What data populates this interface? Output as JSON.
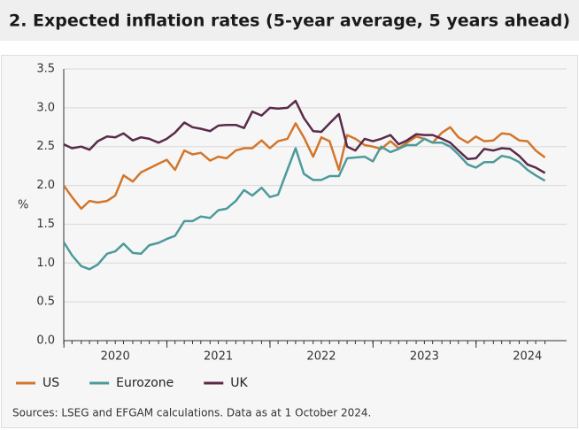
{
  "chart_data": {
    "type": "line",
    "title": "2. Expected inflation rates (5-year average, 5 years ahead)",
    "ylabel": "%",
    "source": "Sources: LSEG and EFGAM calculations. Data as at 1 October 2024.",
    "x": [
      2020.0,
      2020.08,
      2020.17,
      2020.25,
      2020.33,
      2020.42,
      2020.5,
      2020.58,
      2020.67,
      2020.75,
      2020.83,
      2020.92,
      2021.0,
      2021.08,
      2021.17,
      2021.25,
      2021.33,
      2021.42,
      2021.5,
      2021.58,
      2021.67,
      2021.75,
      2021.83,
      2021.92,
      2022.0,
      2022.08,
      2022.17,
      2022.25,
      2022.33,
      2022.42,
      2022.5,
      2022.58,
      2022.67,
      2022.75,
      2022.83,
      2022.92,
      2023.0,
      2023.08,
      2023.17,
      2023.25,
      2023.33,
      2023.42,
      2023.5,
      2023.58,
      2023.67,
      2023.75,
      2023.83,
      2023.92,
      2024.0,
      2024.08,
      2024.17,
      2024.25,
      2024.33,
      2024.42,
      2024.5,
      2024.58,
      2024.67
    ],
    "series": [
      {
        "name": "US",
        "color": "#d2762c",
        "values": [
          2.0,
          1.85,
          1.7,
          1.8,
          1.78,
          1.8,
          1.87,
          2.13,
          2.05,
          2.17,
          2.22,
          2.28,
          2.33,
          2.2,
          2.45,
          2.4,
          2.42,
          2.32,
          2.37,
          2.35,
          2.45,
          2.48,
          2.48,
          2.58,
          2.48,
          2.57,
          2.6,
          2.8,
          2.62,
          2.37,
          2.62,
          2.57,
          2.2,
          2.65,
          2.6,
          2.52,
          2.5,
          2.47,
          2.57,
          2.48,
          2.55,
          2.63,
          2.6,
          2.55,
          2.68,
          2.75,
          2.62,
          2.55,
          2.63,
          2.57,
          2.58,
          2.67,
          2.66,
          2.58,
          2.57,
          2.45,
          2.36
        ]
      },
      {
        "name": "Eurozone",
        "color": "#4d9a9a",
        "values": [
          1.27,
          1.1,
          0.96,
          0.92,
          0.98,
          1.12,
          1.15,
          1.25,
          1.13,
          1.12,
          1.23,
          1.26,
          1.31,
          1.35,
          1.54,
          1.54,
          1.6,
          1.58,
          1.68,
          1.7,
          1.8,
          1.94,
          1.87,
          1.97,
          1.85,
          1.88,
          2.2,
          2.48,
          2.15,
          2.07,
          2.07,
          2.12,
          2.12,
          2.35,
          2.36,
          2.37,
          2.31,
          2.5,
          2.43,
          2.47,
          2.52,
          2.52,
          2.6,
          2.55,
          2.55,
          2.5,
          2.4,
          2.27,
          2.23,
          2.3,
          2.3,
          2.38,
          2.36,
          2.3,
          2.2,
          2.13,
          2.06
        ]
      },
      {
        "name": "UK",
        "color": "#5a2a4a",
        "values": [
          2.53,
          2.48,
          2.5,
          2.46,
          2.57,
          2.63,
          2.62,
          2.67,
          2.58,
          2.62,
          2.6,
          2.55,
          2.6,
          2.68,
          2.81,
          2.75,
          2.73,
          2.7,
          2.77,
          2.78,
          2.78,
          2.74,
          2.95,
          2.9,
          3.0,
          2.99,
          3.0,
          3.09,
          2.87,
          2.7,
          2.69,
          2.8,
          2.92,
          2.5,
          2.45,
          2.6,
          2.57,
          2.6,
          2.65,
          2.53,
          2.58,
          2.66,
          2.65,
          2.65,
          2.6,
          2.55,
          2.45,
          2.34,
          2.35,
          2.47,
          2.45,
          2.48,
          2.47,
          2.38,
          2.27,
          2.23,
          2.16
        ]
      }
    ],
    "xlim": [
      2020.0,
      2024.88
    ],
    "xticks": [
      {
        "value": 2020.5,
        "label": "2020"
      },
      {
        "value": 2021.5,
        "label": "2021"
      },
      {
        "value": 2022.5,
        "label": "2022"
      },
      {
        "value": 2023.5,
        "label": "2023"
      },
      {
        "value": 2024.5,
        "label": "2024"
      }
    ],
    "ylim": [
      0,
      3.5
    ],
    "yticks": [
      {
        "value": 0,
        "label": "0.0"
      },
      0.5,
      {
        "value": 1,
        "label": "1.0"
      },
      1.5,
      {
        "value": 2,
        "label": "2.0"
      },
      2.5,
      {
        "value": 3,
        "label": "3.0"
      },
      3.5
    ],
    "legend": "bottom-left"
  }
}
